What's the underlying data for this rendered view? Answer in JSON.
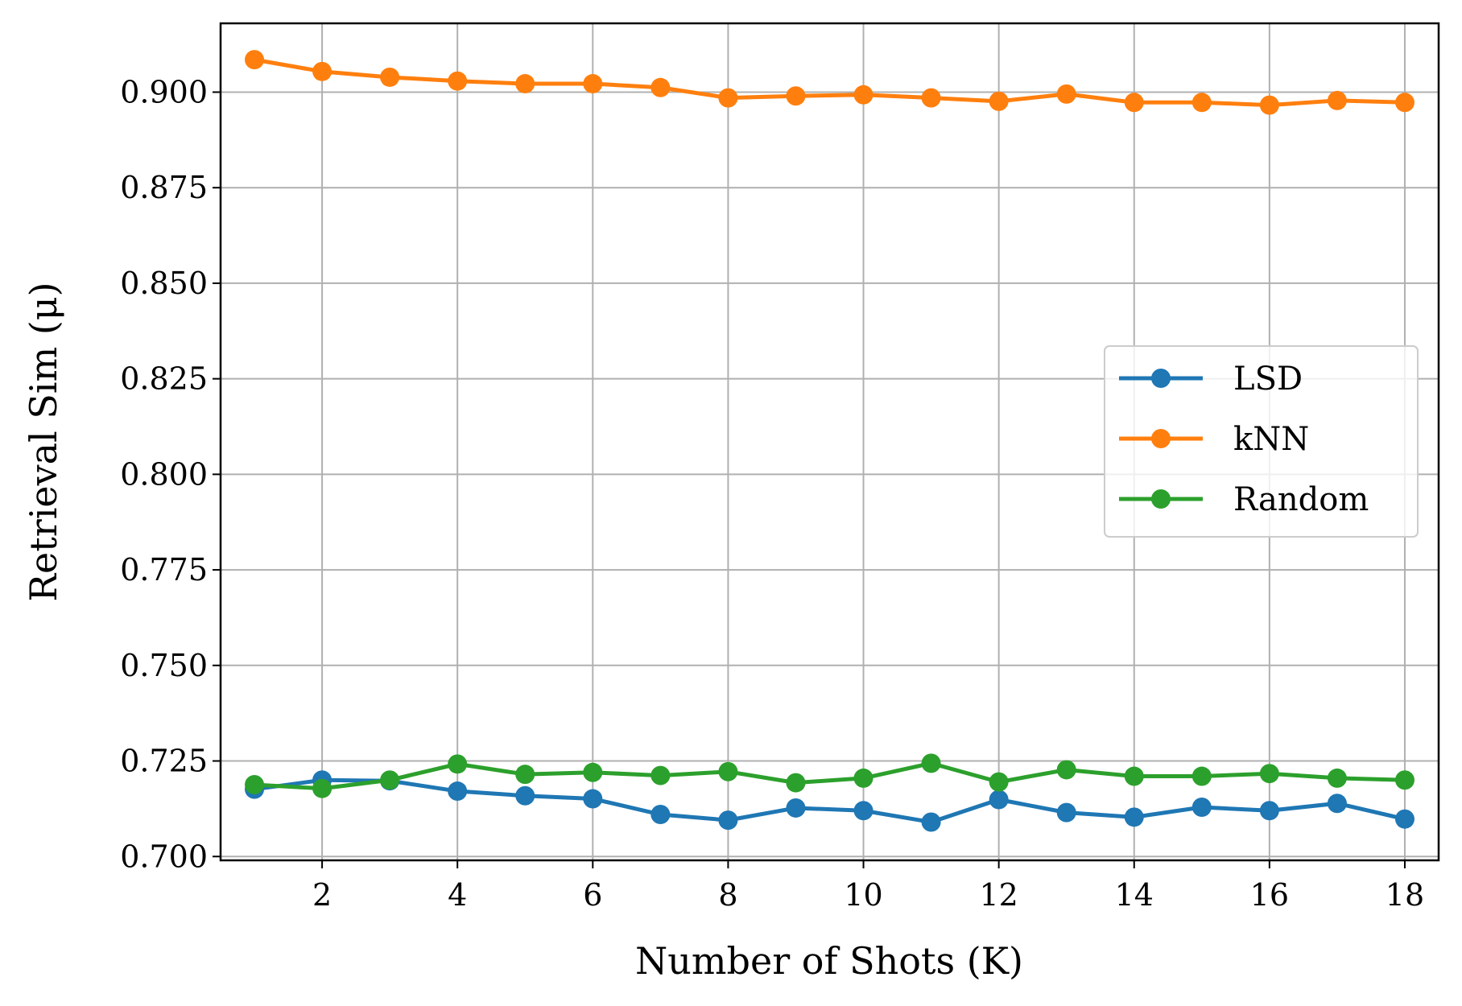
{
  "chart_data": {
    "type": "line",
    "title": "",
    "xlabel": "Number of Shots (K)",
    "ylabel": "Retrieval Sim (μ)",
    "xlim": [
      0.5,
      18.5
    ],
    "ylim": [
      0.699,
      0.918
    ],
    "xticks": [
      2,
      4,
      6,
      8,
      10,
      12,
      14,
      16,
      18
    ],
    "yticks": [
      0.7,
      0.725,
      0.75,
      0.775,
      0.8,
      0.825,
      0.85,
      0.875,
      0.9
    ],
    "ytick_labels": [
      "0.700",
      "0.725",
      "0.750",
      "0.775",
      "0.800",
      "0.825",
      "0.850",
      "0.875",
      "0.900"
    ],
    "grid": true,
    "legend_placement": "center-right",
    "x": [
      1,
      2,
      3,
      4,
      5,
      6,
      7,
      8,
      9,
      10,
      11,
      12,
      13,
      14,
      15,
      16,
      17,
      18
    ],
    "series": [
      {
        "name": "LSD",
        "color": "#1f77b4",
        "marker": "circle",
        "values": [
          0.7176,
          0.72,
          0.7198,
          0.7171,
          0.7159,
          0.7151,
          0.711,
          0.7095,
          0.7127,
          0.712,
          0.709,
          0.7149,
          0.7115,
          0.7103,
          0.7129,
          0.712,
          0.7139,
          0.7098
        ]
      },
      {
        "name": "kNN",
        "color": "#ff7f0e",
        "marker": "circle",
        "values": [
          0.9085,
          0.9054,
          0.9039,
          0.9029,
          0.9022,
          0.9022,
          0.9012,
          0.8985,
          0.899,
          0.8993,
          0.8985,
          0.8976,
          0.8995,
          0.8973,
          0.8973,
          0.8966,
          0.8978,
          0.8973
        ]
      },
      {
        "name": "Random",
        "color": "#2ca02c",
        "marker": "circle",
        "values": [
          0.7188,
          0.7178,
          0.72,
          0.7242,
          0.7215,
          0.722,
          0.7212,
          0.7222,
          0.7193,
          0.7205,
          0.7244,
          0.7195,
          0.7227,
          0.721,
          0.721,
          0.7217,
          0.7205,
          0.72
        ]
      }
    ]
  }
}
